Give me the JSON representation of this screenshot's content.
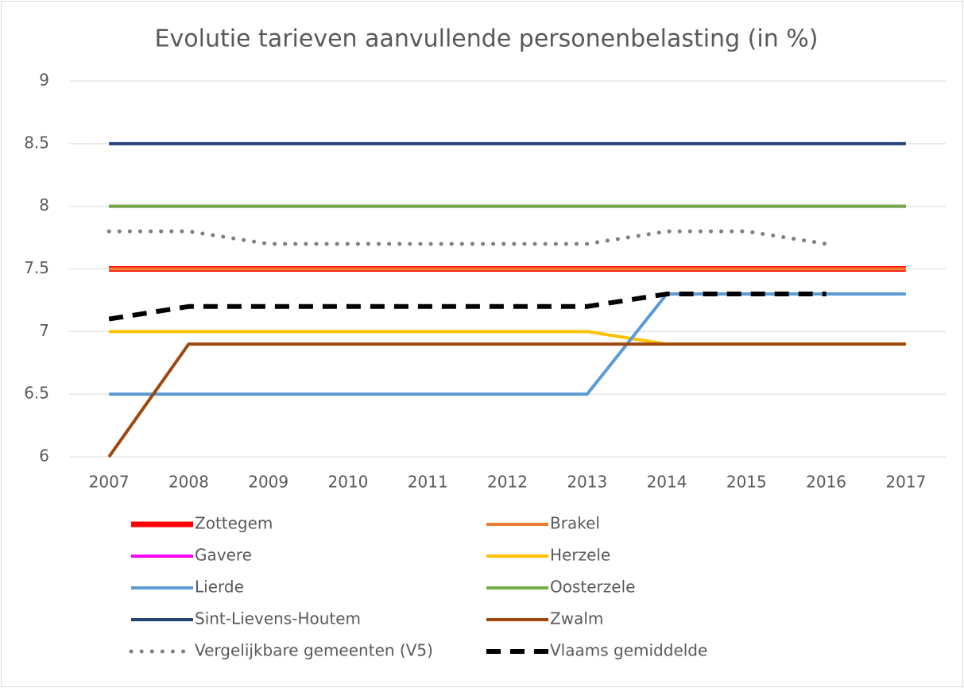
{
  "chart_data": {
    "type": "line",
    "title": "Evolutie tarieven aanvullende personenbelasting (in %)",
    "categories": [
      "2007",
      "2008",
      "2009",
      "2010",
      "2011",
      "2012",
      "2013",
      "2014",
      "2015",
      "2016",
      "2017"
    ],
    "ylim": [
      6,
      9
    ],
    "yticks": [
      6,
      6.5,
      7,
      7.5,
      8,
      8.5,
      9
    ],
    "grid": true,
    "legend": "bottom",
    "series": [
      {
        "name": "Zottegem",
        "color": "#ff0000",
        "width": 7,
        "dash": "solid",
        "values": [
          7.5,
          7.5,
          7.5,
          7.5,
          7.5,
          7.5,
          7.5,
          7.5,
          7.5,
          7.5,
          7.5
        ]
      },
      {
        "name": "Brakel",
        "color": "#ed7d31",
        "width": 4,
        "dash": "solid",
        "values": [
          7.5,
          7.5,
          7.5,
          7.5,
          7.5,
          7.5,
          7.5,
          7.5,
          7.5,
          7.5,
          7.5
        ]
      },
      {
        "name": "Gavere",
        "color": "#ff00ff",
        "width": 4,
        "dash": "solid",
        "values": [
          8,
          8,
          8,
          8,
          8,
          8,
          8,
          8,
          8,
          8,
          8
        ]
      },
      {
        "name": "Herzele",
        "color": "#ffc000",
        "width": 4,
        "dash": "solid",
        "values": [
          7,
          7,
          7,
          7,
          7,
          7,
          7,
          6.9,
          6.9,
          6.9,
          6.9
        ]
      },
      {
        "name": "Lierde",
        "color": "#5b9bd5",
        "width": 4,
        "dash": "solid",
        "values": [
          6.5,
          6.5,
          6.5,
          6.5,
          6.5,
          6.5,
          6.5,
          7.3,
          7.3,
          7.3,
          7.3
        ]
      },
      {
        "name": "Oosterzele",
        "color": "#70ad47",
        "width": 4,
        "dash": "solid",
        "values": [
          8,
          8,
          8,
          8,
          8,
          8,
          8,
          8,
          8,
          8,
          8
        ]
      },
      {
        "name": "Sint-Lievens-Houtem",
        "color": "#264478",
        "width": 4,
        "dash": "solid",
        "values": [
          8.5,
          8.5,
          8.5,
          8.5,
          8.5,
          8.5,
          8.5,
          8.5,
          8.5,
          8.5,
          8.5
        ]
      },
      {
        "name": "Zwalm",
        "color": "#9e480e",
        "width": 4,
        "dash": "solid",
        "values": [
          6,
          6.9,
          6.9,
          6.9,
          6.9,
          6.9,
          6.9,
          6.9,
          6.9,
          6.9,
          6.9
        ]
      },
      {
        "name": "Vergelijkbare gemeenten (V5)",
        "color": "#808080",
        "width": 5,
        "dash": "dotted",
        "values": [
          7.8,
          7.8,
          7.7,
          7.7,
          7.7,
          7.7,
          7.7,
          7.8,
          7.8,
          7.7,
          null
        ]
      },
      {
        "name": "Vlaams gemiddelde",
        "color": "#000000",
        "width": 6,
        "dash": "dashed",
        "values": [
          7.1,
          7.2,
          7.2,
          7.2,
          7.2,
          7.2,
          7.2,
          7.3,
          7.3,
          7.3,
          null
        ]
      }
    ]
  }
}
